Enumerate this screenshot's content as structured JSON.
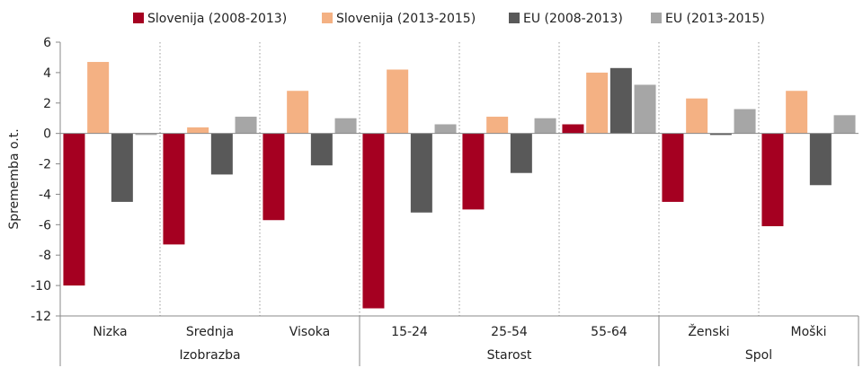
{
  "chart_data": {
    "type": "bar",
    "title": "",
    "ylabel": "Sprememba o.t.",
    "ylim": [
      -12,
      6
    ],
    "yticks": [
      6,
      4,
      2,
      0,
      -2,
      -4,
      -6,
      -8,
      -10,
      -12
    ],
    "grid": false,
    "legend_position": "top",
    "categories": [
      "Nizka",
      "Srednja",
      "Visoka",
      "15-24",
      "25-54",
      "55-64",
      "Ženski",
      "Moški"
    ],
    "groups": [
      {
        "label": "Izobrazba",
        "categories": [
          "Nizka",
          "Srednja",
          "Visoka"
        ]
      },
      {
        "label": "Starost",
        "categories": [
          "15-24",
          "25-54",
          "55-64"
        ]
      },
      {
        "label": "Spol",
        "categories": [
          "Ženski",
          "Moški"
        ]
      }
    ],
    "series": [
      {
        "name": "Slovenija (2008-2013)",
        "color": "#a50021",
        "values": [
          -10.0,
          -7.3,
          -5.7,
          -11.5,
          -5.0,
          0.6,
          -4.5,
          -6.1
        ]
      },
      {
        "name": "Slovenija (2013-2015)",
        "color": "#f4b183",
        "values": [
          4.7,
          0.4,
          2.8,
          4.2,
          1.1,
          4.0,
          2.3,
          2.8
        ]
      },
      {
        "name": "EU (2008-2013)",
        "color": "#595959",
        "values": [
          -4.5,
          -2.7,
          -2.1,
          -5.2,
          -2.6,
          4.3,
          -0.1,
          -3.4
        ]
      },
      {
        "name": "EU (2013-2015)",
        "color": "#a6a6a6",
        "values": [
          -0.1,
          1.1,
          1.0,
          0.6,
          1.0,
          3.2,
          1.6,
          1.2
        ]
      }
    ]
  }
}
